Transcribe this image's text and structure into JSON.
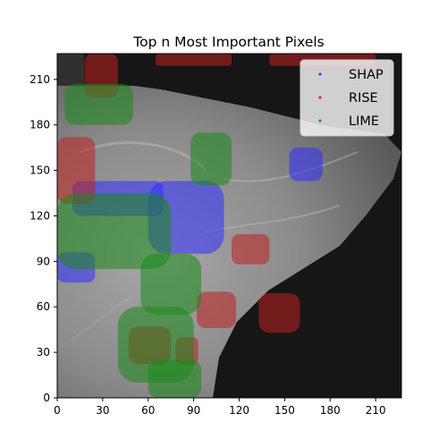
{
  "chart_data": {
    "type": "heatmap",
    "title": "Top n Most Important Pixels",
    "xlabel": "",
    "ylabel": "",
    "xlim": [
      0,
      227
    ],
    "ylim": [
      0,
      227
    ],
    "x_ticks": [
      0,
      30,
      60,
      90,
      120,
      150,
      180,
      210
    ],
    "y_ticks": [
      0,
      30,
      60,
      90,
      120,
      150,
      180,
      210
    ],
    "grid": false,
    "legend_position": "top-right",
    "background": "grayscale medical image (breast tissue scan)",
    "series": [
      {
        "name": "SHAP",
        "color": "#3030ff",
        "regions": [
          {
            "x": [
              0,
              25
            ],
            "y": [
              76,
              96
            ]
          },
          {
            "x": [
              10,
              70
            ],
            "y": [
              120,
              143
            ]
          },
          {
            "x": [
              60,
              110
            ],
            "y": [
              95,
              143
            ]
          },
          {
            "x": [
              153,
              175
            ],
            "y": [
              143,
              165
            ]
          }
        ]
      },
      {
        "name": "RISE",
        "color": "#c02020",
        "regions": [
          {
            "x": [
              0,
              25
            ],
            "y": [
              128,
              172
            ]
          },
          {
            "x": [
              18,
              40
            ],
            "y": [
              198,
              227
            ]
          },
          {
            "x": [
              65,
              115
            ],
            "y": [
              219,
              227
            ]
          },
          {
            "x": [
              140,
              210
            ],
            "y": [
              219,
              227
            ]
          },
          {
            "x": [
              115,
              140
            ],
            "y": [
              88,
              108
            ]
          },
          {
            "x": [
              92,
              118
            ],
            "y": [
              46,
              70
            ]
          },
          {
            "x": [
              133,
              160
            ],
            "y": [
              43,
              69
            ]
          },
          {
            "x": [
              47,
              75
            ],
            "y": [
              22,
              47
            ]
          },
          {
            "x": [
              78,
              93
            ],
            "y": [
              22,
              40
            ]
          }
        ]
      },
      {
        "name": "LIME",
        "color": "#1a8a1a",
        "regions": [
          {
            "x": [
              5,
              50
            ],
            "y": [
              180,
              207
            ]
          },
          {
            "x": [
              88,
              115
            ],
            "y": [
              140,
              175
            ]
          },
          {
            "x": [
              0,
              75
            ],
            "y": [
              85,
              135
            ]
          },
          {
            "x": [
              55,
              95
            ],
            "y": [
              55,
              95
            ]
          },
          {
            "x": [
              40,
              90
            ],
            "y": [
              10,
              60
            ]
          },
          {
            "x": [
              60,
              95
            ],
            "y": [
              0,
              25
            ]
          }
        ]
      }
    ]
  }
}
